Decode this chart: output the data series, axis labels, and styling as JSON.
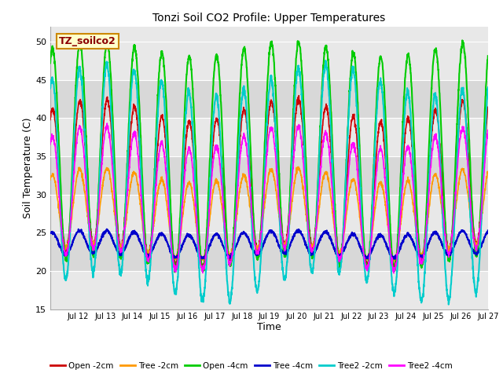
{
  "title": "Tonzi Soil CO2 Profile: Upper Temperatures",
  "xlabel": "Time",
  "ylabel": "Soil Temperature (C)",
  "ylim": [
    15,
    52
  ],
  "yticks": [
    15,
    20,
    25,
    30,
    35,
    40,
    45,
    50
  ],
  "fig_bg": "#ffffff",
  "plot_bg": "#e8e8e8",
  "series_order": [
    "Open -2cm",
    "Tree -2cm",
    "Open -4cm",
    "Tree -4cm",
    "Tree2 -2cm",
    "Tree2 -4cm"
  ],
  "series": {
    "Open -2cm": {
      "color": "#cc0000",
      "lw": 1.2
    },
    "Tree -2cm": {
      "color": "#ff9900",
      "lw": 1.2
    },
    "Open -4cm": {
      "color": "#00cc00",
      "lw": 1.5
    },
    "Tree -4cm": {
      "color": "#0000cc",
      "lw": 1.5
    },
    "Tree2 -2cm": {
      "color": "#00cccc",
      "lw": 1.5
    },
    "Tree2 -4cm": {
      "color": "#ff00ff",
      "lw": 1.2
    }
  },
  "annotation_text": "TZ_soilco2",
  "annotation_color": "#8b0000",
  "annotation_bg": "#ffffcc",
  "annotation_border": "#cc8800",
  "n_days": 16,
  "pts_per_day": 144,
  "x_tick_labels": [
    "Jul 12",
    "Jul 13",
    "Jul 14",
    "Jul 15",
    "Jul 16",
    "Jul 17",
    "Jul 18",
    "Jul 19",
    "Jul 20",
    "Jul 21",
    "Jul 22",
    "Jul 23",
    "Jul 24",
    "Jul 25",
    "Jul 26",
    "Jul 27"
  ],
  "band_colors": [
    "#e8e8e8",
    "#d8d8d8"
  ],
  "grid_color": "#ffffff"
}
